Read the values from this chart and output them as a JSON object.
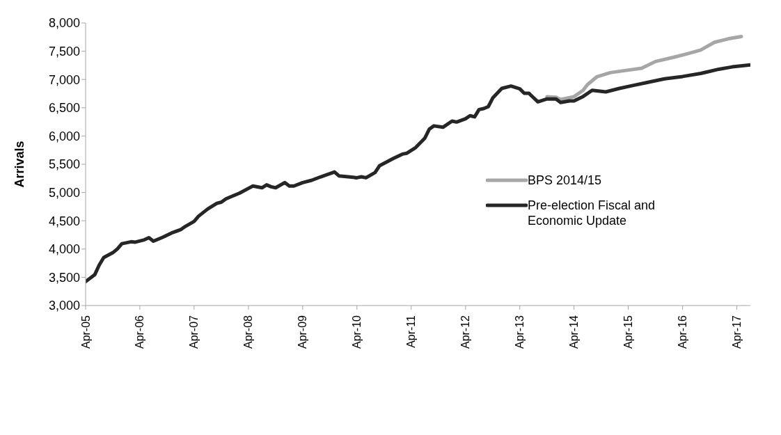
{
  "chart_data": {
    "type": "line",
    "ylabel": "Arrivals",
    "xlim": [
      "2005-04",
      "2017-07"
    ],
    "xticks": [
      {
        "value": "2005-04",
        "label": "Apr-05"
      },
      {
        "value": "2006-04",
        "label": "Apr-06"
      },
      {
        "value": "2007-04",
        "label": "Apr-07"
      },
      {
        "value": "2008-04",
        "label": "Apr-08"
      },
      {
        "value": "2009-04",
        "label": "Apr-09"
      },
      {
        "value": "2010-04",
        "label": "Apr-10"
      },
      {
        "value": "2011-04",
        "label": "Apr-11"
      },
      {
        "value": "2012-04",
        "label": "Apr-12"
      },
      {
        "value": "2013-04",
        "label": "Apr-13"
      },
      {
        "value": "2014-04",
        "label": "Apr-14"
      },
      {
        "value": "2015-04",
        "label": "Apr-15"
      },
      {
        "value": "2016-04",
        "label": "Apr-16"
      },
      {
        "value": "2017-04",
        "label": "Apr-17"
      }
    ],
    "ylim": [
      3000,
      8000
    ],
    "yticks": [
      {
        "value": 3000,
        "label": "3,000"
      },
      {
        "value": 3500,
        "label": "3,500"
      },
      {
        "value": 4000,
        "label": "4,000"
      },
      {
        "value": 4500,
        "label": "4,500"
      },
      {
        "value": 5000,
        "label": "5,000"
      },
      {
        "value": 5500,
        "label": "5,500"
      },
      {
        "value": 6000,
        "label": "6,000"
      },
      {
        "value": 6500,
        "label": "6,500"
      },
      {
        "value": 7000,
        "label": "7,000"
      },
      {
        "value": 7500,
        "label": "7,500"
      },
      {
        "value": 8000,
        "label": "8,000"
      }
    ],
    "grid": false,
    "legend": "right",
    "marker": "none",
    "line_style": "solid",
    "series": [
      {
        "name": "BPS 2014/15",
        "color": "#a6a6a6",
        "x": [
          "2013-10",
          "2013-12",
          "2014-01",
          "2014-04",
          "2014-06",
          "2014-07",
          "2014-09",
          "2014-12",
          "2015-03",
          "2015-07",
          "2015-10",
          "2016-02",
          "2016-05",
          "2016-08",
          "2016-11",
          "2017-02",
          "2017-05"
        ],
        "values": [
          6696,
          6686,
          6645,
          6696,
          6808,
          6910,
          7046,
          7121,
          7155,
          7199,
          7318,
          7393,
          7454,
          7522,
          7658,
          7719,
          7760
        ]
      },
      {
        "name": "Pre-election Fiscal and Economic Update",
        "color": "#262626",
        "x": [
          "2005-04",
          "2005-06",
          "2005-07",
          "2005-08",
          "2005-10",
          "2005-11",
          "2005-12",
          "2006-02",
          "2006-03",
          "2006-05",
          "2006-06",
          "2006-07",
          "2006-09",
          "2006-11",
          "2007-01",
          "2007-02",
          "2007-04",
          "2007-05",
          "2007-07",
          "2007-09",
          "2007-10",
          "2007-11",
          "2007-12",
          "2008-02",
          "2008-04",
          "2008-05",
          "2008-07",
          "2008-08",
          "2008-09",
          "2008-10",
          "2008-12",
          "2009-01",
          "2009-02",
          "2009-04",
          "2009-06",
          "2009-08",
          "2009-11",
          "2009-12",
          "2010-02",
          "2010-04",
          "2010-05",
          "2010-06",
          "2010-08",
          "2010-09",
          "2010-12",
          "2011-02",
          "2011-03",
          "2011-05",
          "2011-07",
          "2011-08",
          "2011-09",
          "2011-11",
          "2012-01",
          "2012-02",
          "2012-04",
          "2012-05",
          "2012-06",
          "2012-07",
          "2012-08",
          "2012-09",
          "2012-10",
          "2012-12",
          "2013-02",
          "2013-04",
          "2013-05",
          "2013-06",
          "2013-08",
          "2013-10",
          "2013-12",
          "2014-01",
          "2014-03",
          "2014-04",
          "2014-06",
          "2014-08",
          "2014-11",
          "2015-02",
          "2015-05",
          "2015-08",
          "2015-12",
          "2016-04",
          "2016-08",
          "2016-12",
          "2017-03",
          "2017-07"
        ],
        "values": [
          3425,
          3544,
          3714,
          3850,
          3935,
          4003,
          4095,
          4129,
          4122,
          4163,
          4200,
          4139,
          4207,
          4285,
          4343,
          4400,
          4489,
          4581,
          4707,
          4809,
          4829,
          4887,
          4921,
          4989,
          5074,
          5115,
          5084,
          5135,
          5101,
          5084,
          5176,
          5115,
          5115,
          5176,
          5217,
          5278,
          5363,
          5295,
          5278,
          5261,
          5278,
          5261,
          5353,
          5476,
          5601,
          5680,
          5693,
          5795,
          5958,
          6121,
          6179,
          6155,
          6264,
          6247,
          6305,
          6359,
          6339,
          6468,
          6485,
          6519,
          6672,
          6842,
          6883,
          6835,
          6757,
          6757,
          6604,
          6655,
          6655,
          6594,
          6621,
          6621,
          6699,
          6808,
          6781,
          6842,
          6893,
          6944,
          7012,
          7053,
          7107,
          7182,
          7223,
          7257
        ]
      }
    ]
  }
}
